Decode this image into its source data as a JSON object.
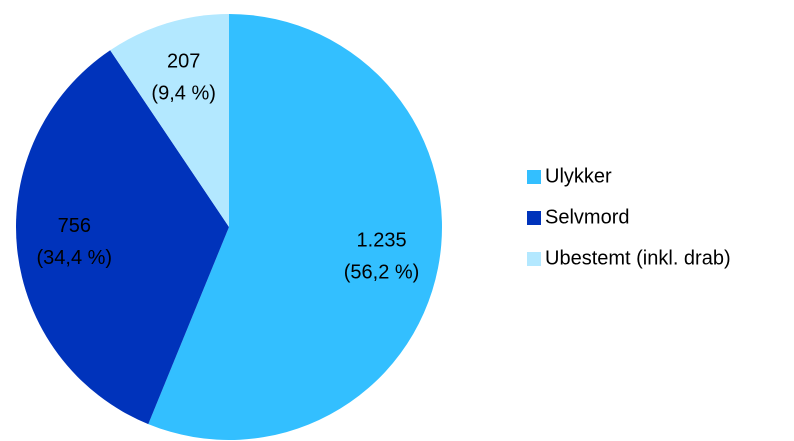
{
  "chart_data": {
    "type": "pie",
    "categories": [
      "Ulykker",
      "Selvmord",
      "Ubestemt (inkl. drab)"
    ],
    "values": [
      1235,
      756,
      207
    ],
    "value_labels": [
      "1.235",
      "756",
      "207"
    ],
    "percent_labels": [
      "(56,2 %)",
      "(34,4 %)",
      "(9,4 %)"
    ],
    "colors": [
      "#33bfff",
      "#0033bb",
      "#b3e8ff"
    ],
    "legend": "right"
  }
}
